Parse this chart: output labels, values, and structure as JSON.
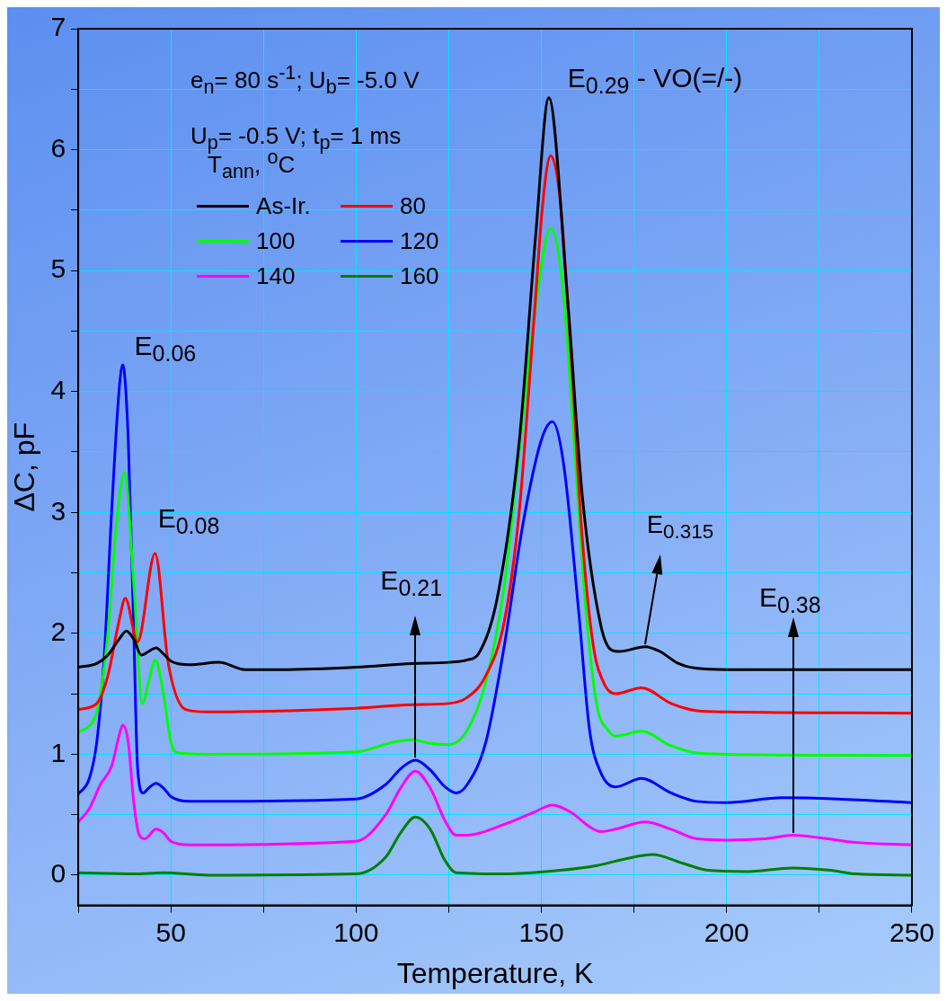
{
  "chart_data": {
    "type": "line",
    "xlabel": "Temperature, K",
    "ylabel": "ΔC, pF",
    "legend_title": "T$_{ann}$, $^{o}$C",
    "legend": "top left",
    "grid": true,
    "line_style": "solid",
    "marker": "none",
    "xlim": [
      25,
      250
    ],
    "ylim": [
      -0.25,
      7
    ],
    "xticks": [
      {
        "value": 25,
        "label": null
      },
      50,
      {
        "value": 75,
        "label": null
      },
      100,
      {
        "value": 125,
        "label": null
      },
      150,
      {
        "value": 175,
        "label": null
      },
      200,
      {
        "value": 225,
        "label": null
      },
      250
    ],
    "yticks": [
      0,
      {
        "value": 0.5,
        "label": null
      },
      1,
      {
        "value": 1.5,
        "label": null
      },
      2,
      {
        "value": 2.5,
        "label": null
      },
      3,
      {
        "value": 3.5,
        "label": null
      },
      4,
      {
        "value": 4.5,
        "label": null
      },
      5,
      {
        "value": 5.5,
        "label": null
      },
      6,
      {
        "value": 6.5,
        "label": null
      },
      7
    ],
    "annotations": [
      "e$_{n}$= 80 s$^{-1}$; U$_{b}$= -5.0 V",
      "U$_{p}$= -0.5 V; t$_{p}$= 1 ms",
      {
        "text": "E$_{0.06}$",
        "x": 37,
        "y": 4.22
      },
      {
        "text": "E$_{0.08}$",
        "x": 45.75,
        "y": 2.66
      },
      {
        "text": "E$_{0.21}$",
        "x": 116,
        "y": 0.95
      },
      {
        "text": "E$_{0.29}$ - VO(=/-)",
        "x": 152,
        "y": 6.43
      },
      {
        "text": "E$_{0.315}$",
        "x": 178,
        "y": 1.89
      },
      {
        "text": "E$_{0.38}$",
        "x": 218,
        "y": 0.33
      }
    ],
    "series": [
      {
        "name": "As-Ir.",
        "color": "#000000",
        "x": [
          25,
          30,
          33,
          36,
          38,
          40,
          42,
          44,
          46,
          48,
          50,
          55,
          63,
          70,
          80,
          100,
          115,
          125,
          130,
          133,
          138,
          144,
          148.5,
          152,
          157,
          161,
          166,
          169,
          171,
          178,
          182,
          187,
          192,
          200,
          250
        ],
        "values": [
          1.72,
          1.75,
          1.82,
          1.95,
          2.02,
          1.95,
          1.82,
          1.85,
          1.88,
          1.83,
          1.77,
          1.74,
          1.76,
          1.7,
          1.7,
          1.72,
          1.75,
          1.76,
          1.78,
          1.83,
          2.28,
          3.58,
          5.31,
          6.43,
          4.79,
          3.15,
          2.07,
          1.86,
          1.85,
          1.89,
          1.85,
          1.75,
          1.71,
          1.7,
          1.7
        ]
      },
      {
        "name": "80",
        "color": "#ff0000",
        "x": [
          25,
          30,
          33,
          36,
          37.7,
          41,
          45.75,
          49.3,
          54,
          60,
          100,
          115,
          125,
          130,
          135,
          140,
          144,
          148,
          150.5,
          152.5,
          155,
          158,
          161,
          164,
          167,
          170,
          177,
          185,
          192,
          200,
          250
        ],
        "values": [
          1.37,
          1.42,
          1.65,
          2.1,
          2.29,
          1.93,
          2.66,
          1.75,
          1.37,
          1.35,
          1.38,
          1.41,
          1.42,
          1.47,
          1.65,
          2.1,
          3,
          4.6,
          5.6,
          5.95,
          5.6,
          4.3,
          2.8,
          1.9,
          1.58,
          1.5,
          1.55,
          1.42,
          1.36,
          1.35,
          1.34
        ]
      },
      {
        "name": "100",
        "color": "#00ff00",
        "x": [
          25,
          30,
          33,
          35,
          37.5,
          40,
          42.3,
          44,
          45.75,
          48,
          50,
          52,
          60,
          100,
          110,
          115,
          120,
          125,
          130,
          135,
          140,
          144,
          148,
          152.5,
          156,
          159,
          162,
          165,
          168,
          170,
          177,
          185,
          192,
          200,
          250
        ],
        "values": [
          1.18,
          1.35,
          2,
          2.8,
          3.33,
          2.4,
          1.42,
          1.6,
          1.78,
          1.5,
          1.1,
          1.01,
          1,
          1.02,
          1.1,
          1.12,
          1.09,
          1.08,
          1.2,
          1.6,
          2.4,
          3.5,
          4.6,
          5.35,
          4.8,
          3.5,
          2.2,
          1.4,
          1.2,
          1.15,
          1.19,
          1.07,
          1.01,
          1,
          0.99
        ]
      },
      {
        "name": "120",
        "color": "#0000ff",
        "x": [
          25,
          28,
          30,
          32,
          34,
          36,
          37,
          38.5,
          40,
          41,
          42.5,
          44,
          46,
          48,
          50,
          55,
          100,
          108,
          112,
          116,
          120,
          124,
          127,
          130,
          135,
          140,
          145,
          150,
          153,
          156,
          160,
          163,
          166,
          170,
          177,
          185,
          192,
          200,
          215,
          230,
          250
        ],
        "values": [
          0.67,
          0.8,
          1.1,
          1.8,
          3,
          4,
          4.22,
          3.6,
          2,
          0.9,
          0.68,
          0.72,
          0.76,
          0.72,
          0.65,
          0.61,
          0.63,
          0.75,
          0.88,
          0.95,
          0.87,
          0.73,
          0.68,
          0.75,
          1.1,
          1.9,
          2.9,
          3.6,
          3.75,
          3.4,
          2.2,
          1.2,
          0.85,
          0.73,
          0.8,
          0.68,
          0.61,
          0.6,
          0.64,
          0.63,
          0.6
        ]
      },
      {
        "name": "140",
        "color": "#ff00ff",
        "x": [
          25,
          28,
          31,
          34,
          36,
          37,
          38.5,
          40,
          41.5,
          43,
          46,
          48,
          50,
          55,
          100,
          108,
          112,
          116,
          120,
          124,
          127,
          130,
          140,
          148,
          153,
          158,
          163,
          166,
          170,
          178,
          185,
          192,
          200,
          210,
          218,
          225,
          235,
          250
        ],
        "values": [
          0.44,
          0.55,
          0.75,
          0.9,
          1.15,
          1.24,
          1.1,
          0.6,
          0.33,
          0.3,
          0.38,
          0.35,
          0.28,
          0.25,
          0.28,
          0.5,
          0.72,
          0.86,
          0.72,
          0.45,
          0.33,
          0.33,
          0.42,
          0.52,
          0.58,
          0.52,
          0.4,
          0.36,
          0.38,
          0.44,
          0.38,
          0.3,
          0.29,
          0.3,
          0.33,
          0.31,
          0.27,
          0.25
        ]
      },
      {
        "name": "160",
        "color": "#008000",
        "x": [
          25,
          40,
          48,
          60,
          100,
          108,
          112,
          116,
          120,
          124,
          127,
          140,
          155,
          165,
          172,
          180,
          188,
          195,
          205,
          218,
          228,
          235,
          250
        ],
        "values": [
          0.02,
          0.01,
          0.02,
          0,
          0.01,
          0.15,
          0.35,
          0.48,
          0.38,
          0.12,
          0.02,
          0.01,
          0.04,
          0.08,
          0.13,
          0.17,
          0.1,
          0.04,
          0.03,
          0.06,
          0.04,
          0.01,
          0
        ]
      }
    ]
  }
}
